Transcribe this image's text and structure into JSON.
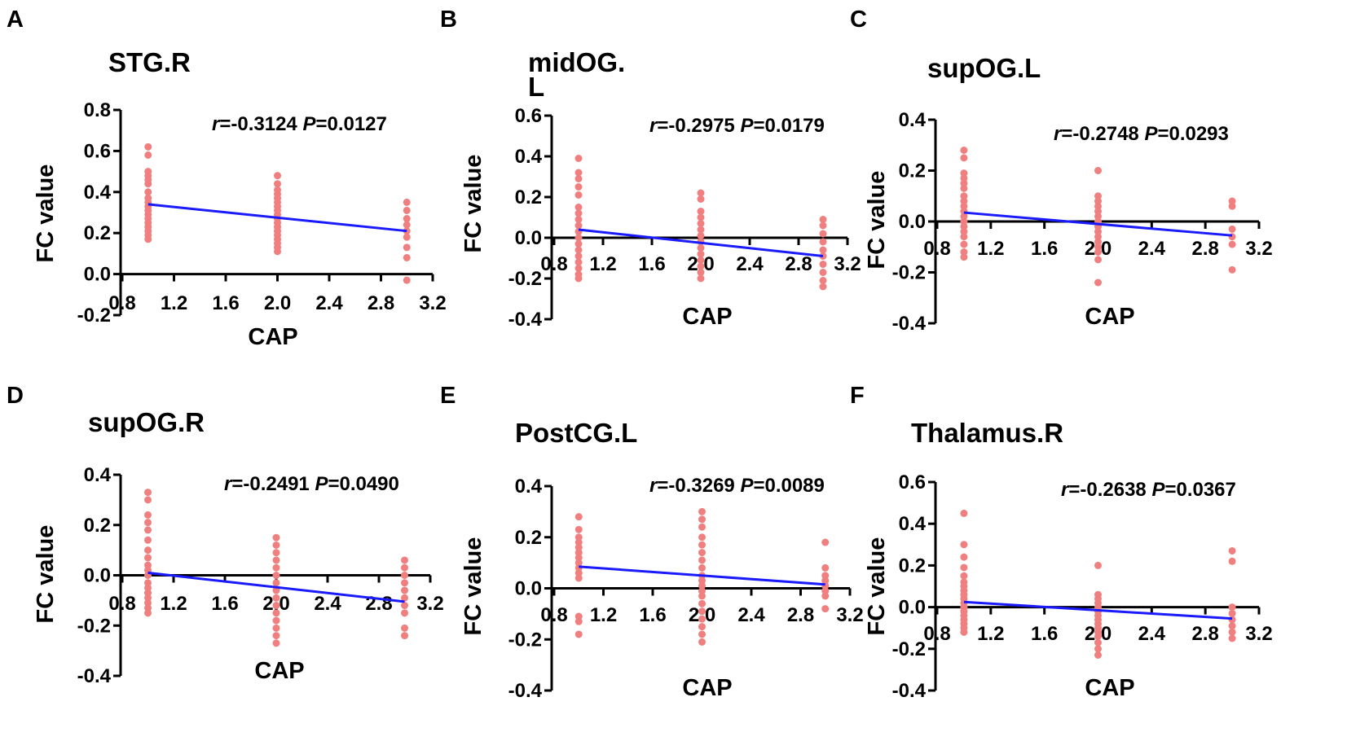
{
  "colors": {
    "points": "#f08080",
    "fit_line": "#1a1aff",
    "axis": "#000000"
  },
  "chart_data": [
    {
      "type": "scatter",
      "panel": "A",
      "title": "STG.R",
      "xlabel": "CAP",
      "ylabel": "FC value",
      "xlim": [
        0.8,
        3.2
      ],
      "ylim": [
        -0.2,
        0.8
      ],
      "xticks": [
        "0.8",
        "1.2",
        "1.6",
        "2.0",
        "2.4",
        "2.8",
        "3.2"
      ],
      "yticks": [
        "-0.2",
        "0.0",
        "0.2",
        "0.4",
        "0.6",
        "0.8"
      ],
      "stats": {
        "r_symbol": "r",
        "r_value": "=-0.3124 ",
        "p_symbol": "P",
        "p_value": "=0.0127"
      },
      "fit": {
        "x": [
          1.0,
          3.0
        ],
        "y": [
          0.34,
          0.21
        ]
      },
      "points": [
        {
          "x": 1,
          "y": 0.62
        },
        {
          "x": 1,
          "y": 0.58
        },
        {
          "x": 1,
          "y": 0.5
        },
        {
          "x": 1,
          "y": 0.48
        },
        {
          "x": 1,
          "y": 0.46
        },
        {
          "x": 1,
          "y": 0.44
        },
        {
          "x": 1,
          "y": 0.4
        },
        {
          "x": 1,
          "y": 0.37
        },
        {
          "x": 1,
          "y": 0.35
        },
        {
          "x": 1,
          "y": 0.33
        },
        {
          "x": 1,
          "y": 0.31
        },
        {
          "x": 1,
          "y": 0.29
        },
        {
          "x": 1,
          "y": 0.27
        },
        {
          "x": 1,
          "y": 0.25
        },
        {
          "x": 1,
          "y": 0.23
        },
        {
          "x": 1,
          "y": 0.21
        },
        {
          "x": 1,
          "y": 0.19
        },
        {
          "x": 1,
          "y": 0.17
        },
        {
          "x": 2,
          "y": 0.48
        },
        {
          "x": 2,
          "y": 0.44
        },
        {
          "x": 2,
          "y": 0.41
        },
        {
          "x": 2,
          "y": 0.39
        },
        {
          "x": 2,
          "y": 0.37
        },
        {
          "x": 2,
          "y": 0.35
        },
        {
          "x": 2,
          "y": 0.33
        },
        {
          "x": 2,
          "y": 0.31
        },
        {
          "x": 2,
          "y": 0.29
        },
        {
          "x": 2,
          "y": 0.27
        },
        {
          "x": 2,
          "y": 0.25
        },
        {
          "x": 2,
          "y": 0.23
        },
        {
          "x": 2,
          "y": 0.21
        },
        {
          "x": 2,
          "y": 0.19
        },
        {
          "x": 2,
          "y": 0.17
        },
        {
          "x": 2,
          "y": 0.15
        },
        {
          "x": 2,
          "y": 0.13
        },
        {
          "x": 2,
          "y": 0.11
        },
        {
          "x": 3,
          "y": 0.35
        },
        {
          "x": 3,
          "y": 0.31
        },
        {
          "x": 3,
          "y": 0.27
        },
        {
          "x": 3,
          "y": 0.24
        },
        {
          "x": 3,
          "y": 0.21
        },
        {
          "x": 3,
          "y": 0.18
        },
        {
          "x": 3,
          "y": 0.13
        },
        {
          "x": 3,
          "y": 0.08
        },
        {
          "x": 3,
          "y": -0.03
        }
      ]
    },
    {
      "type": "scatter",
      "panel": "B",
      "title": "midOG.\nL",
      "xlabel": "CAP",
      "ylabel": "FC value",
      "xlim": [
        0.8,
        3.2
      ],
      "ylim": [
        -0.4,
        0.6
      ],
      "xticks": [
        "0.8",
        "1.2",
        "1.6",
        "2.0",
        "2.4",
        "2.8",
        "3.2"
      ],
      "yticks": [
        "-0.4",
        "-0.2",
        "0.0",
        "0.2",
        "0.4",
        "0.6"
      ],
      "stats": {
        "r_symbol": "r",
        "r_value": "=-0.2975 ",
        "p_symbol": "P",
        "p_value": "=0.0179"
      },
      "fit": {
        "x": [
          1.0,
          3.0
        ],
        "y": [
          0.04,
          -0.09
        ]
      },
      "points": [
        {
          "x": 1,
          "y": 0.39
        },
        {
          "x": 1,
          "y": 0.32
        },
        {
          "x": 1,
          "y": 0.29
        },
        {
          "x": 1,
          "y": 0.25
        },
        {
          "x": 1,
          "y": 0.21
        },
        {
          "x": 1,
          "y": 0.15
        },
        {
          "x": 1,
          "y": 0.12
        },
        {
          "x": 1,
          "y": 0.09
        },
        {
          "x": 1,
          "y": 0.06
        },
        {
          "x": 1,
          "y": 0.03
        },
        {
          "x": 1,
          "y": 0.0
        },
        {
          "x": 1,
          "y": -0.03
        },
        {
          "x": 1,
          "y": -0.06
        },
        {
          "x": 1,
          "y": -0.09
        },
        {
          "x": 1,
          "y": -0.12
        },
        {
          "x": 1,
          "y": -0.15
        },
        {
          "x": 1,
          "y": -0.18
        },
        {
          "x": 1,
          "y": -0.2
        },
        {
          "x": 2,
          "y": 0.22
        },
        {
          "x": 2,
          "y": 0.19
        },
        {
          "x": 2,
          "y": 0.13
        },
        {
          "x": 2,
          "y": 0.1
        },
        {
          "x": 2,
          "y": 0.07
        },
        {
          "x": 2,
          "y": 0.04
        },
        {
          "x": 2,
          "y": 0.01
        },
        {
          "x": 2,
          "y": -0.02
        },
        {
          "x": 2,
          "y": -0.05
        },
        {
          "x": 2,
          "y": -0.08
        },
        {
          "x": 2,
          "y": -0.11
        },
        {
          "x": 2,
          "y": -0.14
        },
        {
          "x": 2,
          "y": -0.17
        },
        {
          "x": 2,
          "y": -0.2
        },
        {
          "x": 3,
          "y": 0.09
        },
        {
          "x": 3,
          "y": 0.06
        },
        {
          "x": 3,
          "y": 0.02
        },
        {
          "x": 3,
          "y": -0.02
        },
        {
          "x": 3,
          "y": -0.06
        },
        {
          "x": 3,
          "y": -0.09
        },
        {
          "x": 3,
          "y": -0.13
        },
        {
          "x": 3,
          "y": -0.17
        },
        {
          "x": 3,
          "y": -0.21
        },
        {
          "x": 3,
          "y": -0.24
        }
      ]
    },
    {
      "type": "scatter",
      "panel": "C",
      "title": "supOG.L",
      "xlabel": "CAP",
      "ylabel": "FC value",
      "xlim": [
        0.8,
        3.2
      ],
      "ylim": [
        -0.4,
        0.4
      ],
      "xticks": [
        "0.8",
        "1.2",
        "1.6",
        "2.0",
        "2.4",
        "2.8",
        "3.2"
      ],
      "yticks": [
        "-0.4",
        "-0.2",
        "0.0",
        "0.2",
        "0.4"
      ],
      "stats": {
        "r_symbol": "r",
        "r_value": "=-0.2748 ",
        "p_symbol": "P",
        "p_value": "=0.0293"
      },
      "fit": {
        "x": [
          1.0,
          3.0
        ],
        "y": [
          0.035,
          -0.055
        ]
      },
      "points": [
        {
          "x": 1,
          "y": 0.28
        },
        {
          "x": 1,
          "y": 0.25
        },
        {
          "x": 1,
          "y": 0.19
        },
        {
          "x": 1,
          "y": 0.17
        },
        {
          "x": 1,
          "y": 0.15
        },
        {
          "x": 1,
          "y": 0.13
        },
        {
          "x": 1,
          "y": 0.1
        },
        {
          "x": 1,
          "y": 0.08
        },
        {
          "x": 1,
          "y": 0.06
        },
        {
          "x": 1,
          "y": 0.04
        },
        {
          "x": 1,
          "y": 0.02
        },
        {
          "x": 1,
          "y": 0.0
        },
        {
          "x": 1,
          "y": -0.02
        },
        {
          "x": 1,
          "y": -0.04
        },
        {
          "x": 1,
          "y": -0.06
        },
        {
          "x": 1,
          "y": -0.09
        },
        {
          "x": 1,
          "y": -0.12
        },
        {
          "x": 1,
          "y": -0.14
        },
        {
          "x": 2,
          "y": 0.2
        },
        {
          "x": 2,
          "y": 0.1
        },
        {
          "x": 2,
          "y": 0.08
        },
        {
          "x": 2,
          "y": 0.06
        },
        {
          "x": 2,
          "y": 0.04
        },
        {
          "x": 2,
          "y": 0.02
        },
        {
          "x": 2,
          "y": 0.0
        },
        {
          "x": 2,
          "y": -0.02
        },
        {
          "x": 2,
          "y": -0.04
        },
        {
          "x": 2,
          "y": -0.06
        },
        {
          "x": 2,
          "y": -0.08
        },
        {
          "x": 2,
          "y": -0.1
        },
        {
          "x": 2,
          "y": -0.12
        },
        {
          "x": 2,
          "y": -0.15
        },
        {
          "x": 2,
          "y": -0.24
        },
        {
          "x": 3,
          "y": 0.08
        },
        {
          "x": 3,
          "y": 0.06
        },
        {
          "x": 3,
          "y": -0.03
        },
        {
          "x": 3,
          "y": -0.06
        },
        {
          "x": 3,
          "y": -0.09
        },
        {
          "x": 3,
          "y": -0.19
        }
      ]
    },
    {
      "type": "scatter",
      "panel": "D",
      "title": "supOG.R",
      "xlabel": "CAP",
      "ylabel": "FC value",
      "xlim": [
        0.8,
        3.2
      ],
      "ylim": [
        -0.4,
        0.4
      ],
      "xticks": [
        "0.8",
        "1.2",
        "1.6",
        "2.0",
        "2.4",
        "2.8",
        "3.2"
      ],
      "yticks": [
        "-0.4",
        "-0.2",
        "0.0",
        "0.2",
        "0.4"
      ],
      "stats": {
        "r_symbol": "r",
        "r_value": "=-0.2491 ",
        "p_symbol": "P",
        "p_value": "=0.0490"
      },
      "fit": {
        "x": [
          1.0,
          3.0
        ],
        "y": [
          0.01,
          -0.105
        ]
      },
      "points": [
        {
          "x": 1,
          "y": 0.33
        },
        {
          "x": 1,
          "y": 0.3
        },
        {
          "x": 1,
          "y": 0.24
        },
        {
          "x": 1,
          "y": 0.21
        },
        {
          "x": 1,
          "y": 0.18
        },
        {
          "x": 1,
          "y": 0.14
        },
        {
          "x": 1,
          "y": 0.1
        },
        {
          "x": 1,
          "y": 0.07
        },
        {
          "x": 1,
          "y": 0.04
        },
        {
          "x": 1,
          "y": 0.02
        },
        {
          "x": 1,
          "y": 0.0
        },
        {
          "x": 1,
          "y": -0.03
        },
        {
          "x": 1,
          "y": -0.05
        },
        {
          "x": 1,
          "y": -0.07
        },
        {
          "x": 1,
          "y": -0.09
        },
        {
          "x": 1,
          "y": -0.11
        },
        {
          "x": 1,
          "y": -0.13
        },
        {
          "x": 1,
          "y": -0.15
        },
        {
          "x": 2,
          "y": 0.15
        },
        {
          "x": 2,
          "y": 0.12
        },
        {
          "x": 2,
          "y": 0.09
        },
        {
          "x": 2,
          "y": 0.06
        },
        {
          "x": 2,
          "y": 0.03
        },
        {
          "x": 2,
          "y": 0.0
        },
        {
          "x": 2,
          "y": -0.03
        },
        {
          "x": 2,
          "y": -0.06
        },
        {
          "x": 2,
          "y": -0.09
        },
        {
          "x": 2,
          "y": -0.12
        },
        {
          "x": 2,
          "y": -0.15
        },
        {
          "x": 2,
          "y": -0.18
        },
        {
          "x": 2,
          "y": -0.21
        },
        {
          "x": 2,
          "y": -0.24
        },
        {
          "x": 2,
          "y": -0.27
        },
        {
          "x": 3,
          "y": 0.06
        },
        {
          "x": 3,
          "y": 0.03
        },
        {
          "x": 3,
          "y": 0.0
        },
        {
          "x": 3,
          "y": -0.03
        },
        {
          "x": 3,
          "y": -0.06
        },
        {
          "x": 3,
          "y": -0.09
        },
        {
          "x": 3,
          "y": -0.12
        },
        {
          "x": 3,
          "y": -0.15
        },
        {
          "x": 3,
          "y": -0.21
        },
        {
          "x": 3,
          "y": -0.24
        }
      ]
    },
    {
      "type": "scatter",
      "panel": "E",
      "title": "PostCG.L",
      "xlabel": "CAP",
      "ylabel": "FC value",
      "xlim": [
        0.8,
        3.2
      ],
      "ylim": [
        -0.4,
        0.4
      ],
      "xticks": [
        "0.8",
        "1.2",
        "1.6",
        "2.0",
        "2.4",
        "2.8",
        "3.2"
      ],
      "yticks": [
        "-0.4",
        "-0.2",
        "0.0",
        "0.2",
        "0.4"
      ],
      "stats": {
        "r_symbol": "r",
        "r_value": "=-0.3269 ",
        "p_symbol": "P",
        "p_value": "=0.0089"
      },
      "fit": {
        "x": [
          1.0,
          3.0
        ],
        "y": [
          0.085,
          0.015
        ]
      },
      "points": [
        {
          "x": 1,
          "y": 0.28
        },
        {
          "x": 1,
          "y": 0.23
        },
        {
          "x": 1,
          "y": 0.2
        },
        {
          "x": 1,
          "y": 0.18
        },
        {
          "x": 1,
          "y": 0.16
        },
        {
          "x": 1,
          "y": 0.14
        },
        {
          "x": 1,
          "y": 0.12
        },
        {
          "x": 1,
          "y": 0.1
        },
        {
          "x": 1,
          "y": 0.08
        },
        {
          "x": 1,
          "y": 0.06
        },
        {
          "x": 1,
          "y": 0.04
        },
        {
          "x": 1,
          "y": -0.11
        },
        {
          "x": 1,
          "y": -0.13
        },
        {
          "x": 1,
          "y": -0.18
        },
        {
          "x": 2,
          "y": 0.3
        },
        {
          "x": 2,
          "y": 0.27
        },
        {
          "x": 2,
          "y": 0.24
        },
        {
          "x": 2,
          "y": 0.2
        },
        {
          "x": 2,
          "y": 0.17
        },
        {
          "x": 2,
          "y": 0.14
        },
        {
          "x": 2,
          "y": 0.11
        },
        {
          "x": 2,
          "y": 0.08
        },
        {
          "x": 2,
          "y": 0.05
        },
        {
          "x": 2,
          "y": 0.03
        },
        {
          "x": 2,
          "y": 0.01
        },
        {
          "x": 2,
          "y": -0.01
        },
        {
          "x": 2,
          "y": -0.03
        },
        {
          "x": 2,
          "y": -0.06
        },
        {
          "x": 2,
          "y": -0.09
        },
        {
          "x": 2,
          "y": -0.12
        },
        {
          "x": 2,
          "y": -0.15
        },
        {
          "x": 2,
          "y": -0.18
        },
        {
          "x": 2,
          "y": -0.21
        },
        {
          "x": 3,
          "y": 0.18
        },
        {
          "x": 3,
          "y": 0.08
        },
        {
          "x": 3,
          "y": 0.05
        },
        {
          "x": 3,
          "y": 0.03
        },
        {
          "x": 3,
          "y": 0.01
        },
        {
          "x": 3,
          "y": -0.01
        },
        {
          "x": 3,
          "y": -0.03
        },
        {
          "x": 3,
          "y": -0.08
        }
      ]
    },
    {
      "type": "scatter",
      "panel": "F",
      "title": "Thalamus.R",
      "xlabel": "CAP",
      "ylabel": "FC value",
      "xlim": [
        0.8,
        3.2
      ],
      "ylim": [
        -0.4,
        0.6
      ],
      "xticks": [
        "0.8",
        "1.2",
        "1.6",
        "2.0",
        "2.4",
        "2.8",
        "3.2"
      ],
      "yticks": [
        "-0.4",
        "-0.2",
        "0.0",
        "0.2",
        "0.4",
        "0.6"
      ],
      "stats": {
        "r_symbol": "r",
        "r_value": "=-0.2638 ",
        "p_symbol": "P",
        "p_value": "=0.0367"
      },
      "fit": {
        "x": [
          1.0,
          3.0
        ],
        "y": [
          0.025,
          -0.055
        ]
      },
      "points": [
        {
          "x": 1,
          "y": 0.45
        },
        {
          "x": 1,
          "y": 0.3
        },
        {
          "x": 1,
          "y": 0.24
        },
        {
          "x": 1,
          "y": 0.19
        },
        {
          "x": 1,
          "y": 0.15
        },
        {
          "x": 1,
          "y": 0.12
        },
        {
          "x": 1,
          "y": 0.1
        },
        {
          "x": 1,
          "y": 0.08
        },
        {
          "x": 1,
          "y": 0.06
        },
        {
          "x": 1,
          "y": 0.04
        },
        {
          "x": 1,
          "y": 0.02
        },
        {
          "x": 1,
          "y": 0.0
        },
        {
          "x": 1,
          "y": -0.02
        },
        {
          "x": 1,
          "y": -0.04
        },
        {
          "x": 1,
          "y": -0.06
        },
        {
          "x": 1,
          "y": -0.08
        },
        {
          "x": 1,
          "y": -0.1
        },
        {
          "x": 1,
          "y": -0.12
        },
        {
          "x": 2,
          "y": 0.2
        },
        {
          "x": 2,
          "y": 0.06
        },
        {
          "x": 2,
          "y": 0.04
        },
        {
          "x": 2,
          "y": 0.02
        },
        {
          "x": 2,
          "y": 0.0
        },
        {
          "x": 2,
          "y": -0.02
        },
        {
          "x": 2,
          "y": -0.04
        },
        {
          "x": 2,
          "y": -0.06
        },
        {
          "x": 2,
          "y": -0.08
        },
        {
          "x": 2,
          "y": -0.1
        },
        {
          "x": 2,
          "y": -0.12
        },
        {
          "x": 2,
          "y": -0.14
        },
        {
          "x": 2,
          "y": -0.17
        },
        {
          "x": 2,
          "y": -0.2
        },
        {
          "x": 2,
          "y": -0.23
        },
        {
          "x": 3,
          "y": 0.27
        },
        {
          "x": 3,
          "y": 0.22
        },
        {
          "x": 3,
          "y": 0.0
        },
        {
          "x": 3,
          "y": -0.03
        },
        {
          "x": 3,
          "y": -0.06
        },
        {
          "x": 3,
          "y": -0.09
        },
        {
          "x": 3,
          "y": -0.12
        },
        {
          "x": 3,
          "y": -0.15
        }
      ]
    }
  ]
}
